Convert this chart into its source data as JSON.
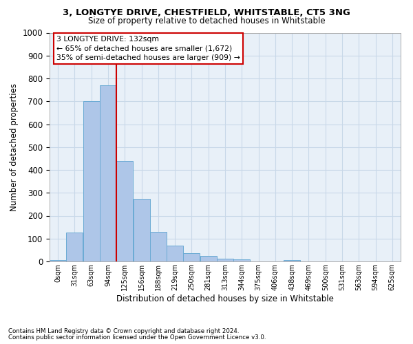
{
  "title1": "3, LONGTYE DRIVE, CHESTFIELD, WHITSTABLE, CT5 3NG",
  "title2": "Size of property relative to detached houses in Whitstable",
  "xlabel": "Distribution of detached houses by size in Whitstable",
  "ylabel": "Number of detached properties",
  "footer1": "Contains HM Land Registry data © Crown copyright and database right 2024.",
  "footer2": "Contains public sector information licensed under the Open Government Licence v3.0.",
  "annotation_line1": "3 LONGTYE DRIVE: 132sqm",
  "annotation_line2": "← 65% of detached houses are smaller (1,672)",
  "annotation_line3": "35% of semi-detached houses are larger (909) →",
  "bar_color": "#aec6e8",
  "bar_edge_color": "#6aaad4",
  "vline_color": "#cc0000",
  "categories": [
    "0sqm",
    "31sqm",
    "63sqm",
    "94sqm",
    "125sqm",
    "156sqm",
    "188sqm",
    "219sqm",
    "250sqm",
    "281sqm",
    "313sqm",
    "344sqm",
    "375sqm",
    "406sqm",
    "438sqm",
    "469sqm",
    "500sqm",
    "531sqm",
    "563sqm",
    "594sqm",
    "625sqm"
  ],
  "values": [
    5,
    125,
    700,
    770,
    440,
    275,
    130,
    68,
    37,
    25,
    12,
    10,
    0,
    0,
    7,
    0,
    0,
    0,
    0,
    0,
    0
  ],
  "ylim": [
    0,
    1000
  ],
  "bin_width": 31,
  "vline_x_index": 4,
  "grid_color": "#c8d8e8",
  "background_color": "#ffffff",
  "ax_background": "#e8f0f8"
}
